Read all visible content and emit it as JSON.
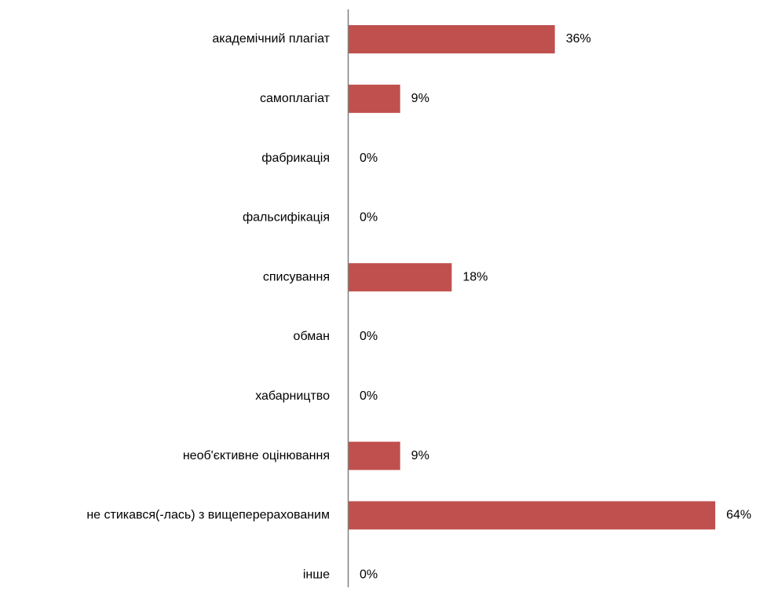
{
  "chart_data": {
    "type": "bar",
    "orientation": "horizontal",
    "title": "",
    "xlabel": "",
    "ylabel": "",
    "categories": [
      "академічний плагіат",
      "самоплагіат",
      "фабрикація",
      "фальсифікація",
      "списування",
      "обман",
      "хабарництво",
      "необ'єктивне оцінювання",
      "не стикався(-лась) з вищеперерахованим",
      "інше"
    ],
    "values": [
      36,
      9,
      0,
      0,
      18,
      0,
      0,
      9,
      64,
      0
    ],
    "value_labels": [
      "36%",
      "9%",
      "0%",
      "0%",
      "18%",
      "0%",
      "0%",
      "9%",
      "64%",
      "0%"
    ],
    "unit": "%",
    "xlim": [
      0,
      64
    ],
    "grid": false,
    "legend": "none",
    "bar_color": "#C0504D",
    "axis_color": "#808080"
  }
}
